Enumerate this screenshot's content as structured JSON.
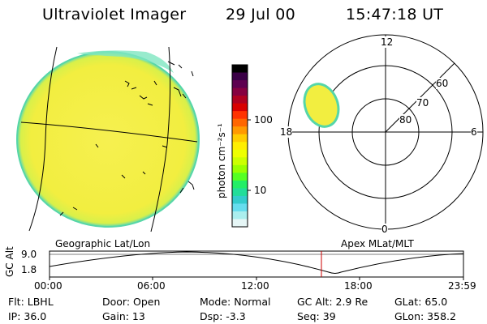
{
  "header": {
    "instrument": "Ultraviolet Imager",
    "date": "29 Jul 00",
    "time": "15:47:18 UT"
  },
  "colorbar": {
    "label": "photon cm⁻²s⁻¹",
    "ticks": [
      "100",
      "10"
    ],
    "colors": [
      "#000000",
      "#3a0046",
      "#5e0050",
      "#860040",
      "#b00020",
      "#d80000",
      "#ff3300",
      "#ff6600",
      "#ff9900",
      "#ffcc00",
      "#ffee00",
      "#eeff00",
      "#ccff00",
      "#99ff00",
      "#55ff22",
      "#22ee66",
      "#22dd99",
      "#33cccc",
      "#66ddee",
      "#aaeeee",
      "#e6f6f6"
    ]
  },
  "geo_panel": {
    "label": "Geographic Lat/Lon"
  },
  "polar_panel": {
    "label": "Apex MLat/MLT",
    "mlt_labels": [
      "12",
      "18",
      "6",
      "0"
    ],
    "lat_labels": [
      "60",
      "70",
      "80"
    ]
  },
  "timeline": {
    "ylabel": "GC Alt",
    "yticks": [
      "9.0",
      "1.8"
    ],
    "xticks": [
      "00:00",
      "06:00",
      "12:00",
      "18:00",
      "23:59"
    ]
  },
  "status": {
    "row1": [
      "Flt: LBHL",
      "Door: Open",
      "Mode: Normal",
      "GC Alt: 2.9 Re",
      "GLat:  65.0"
    ],
    "row2": [
      "IP: 36.0",
      "Gain: 13",
      "Dsp:    -3.3",
      "Seq: 39",
      "GLon: 358.2"
    ]
  },
  "colors": {
    "disk_fill": "#f4f045",
    "disk_edge": "#44d9a0",
    "marker": "#cc0000"
  }
}
